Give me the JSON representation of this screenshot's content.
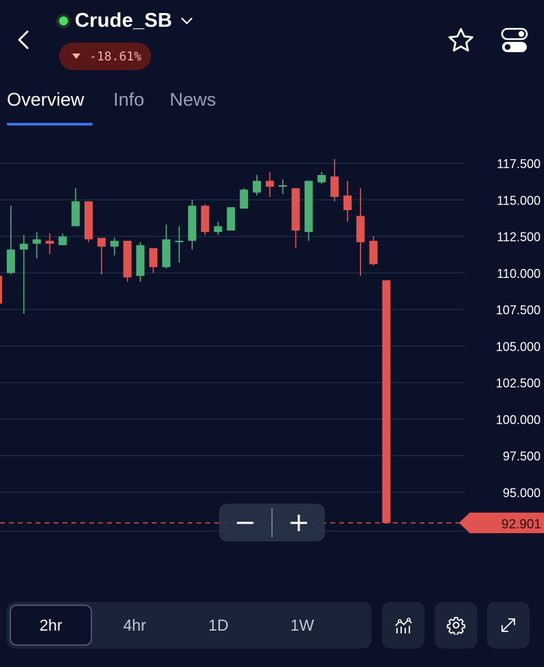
{
  "header": {
    "title": "Crude_SB",
    "change": "-18.61%",
    "icons": {
      "back": "chevron-left-icon",
      "dropdown": "chevron-down-icon",
      "favorite": "star-icon",
      "settings_toggle": "toggle-switch-icon"
    },
    "colors": {
      "live_dot": "#4cd964",
      "negative": "#e0534f",
      "accent": "#3f70e6"
    }
  },
  "tabs": [
    {
      "label": "Overview",
      "active": true
    },
    {
      "label": "Info",
      "active": false
    },
    {
      "label": "News",
      "active": false
    }
  ],
  "chart_data": {
    "type": "candlestick",
    "y_tick_labels": [
      "117.500",
      "115.000",
      "112.500",
      "110.000",
      "107.500",
      "105.000",
      "102.500",
      "100.000",
      "97.500",
      "95.000"
    ],
    "ylim": [
      91.8,
      119.5
    ],
    "grid": true,
    "current_price": 92.901,
    "current_price_label": "92.901",
    "up_color": "#4caf73",
    "down_color": "#e0534f",
    "candles": [
      {
        "o": 109.8,
        "h": 110.2,
        "l": 107.8,
        "c": 107.9
      },
      {
        "o": 110.0,
        "h": 114.6,
        "l": 109.9,
        "c": 111.6
      },
      {
        "o": 111.6,
        "h": 112.6,
        "l": 107.2,
        "c": 112.0
      },
      {
        "o": 112.0,
        "h": 112.8,
        "l": 111.0,
        "c": 112.3
      },
      {
        "o": 112.2,
        "h": 112.7,
        "l": 111.3,
        "c": 112.0
      },
      {
        "o": 111.9,
        "h": 112.7,
        "l": 111.9,
        "c": 112.5
      },
      {
        "o": 113.2,
        "h": 115.8,
        "l": 113.2,
        "c": 114.9
      },
      {
        "o": 114.9,
        "h": 114.9,
        "l": 112.1,
        "c": 112.3
      },
      {
        "o": 112.4,
        "h": 112.4,
        "l": 109.9,
        "c": 111.8
      },
      {
        "o": 111.8,
        "h": 112.4,
        "l": 111.2,
        "c": 112.2
      },
      {
        "o": 112.2,
        "h": 112.2,
        "l": 109.4,
        "c": 109.7
      },
      {
        "o": 109.8,
        "h": 112.1,
        "l": 109.4,
        "c": 111.9
      },
      {
        "o": 111.7,
        "h": 111.7,
        "l": 110.0,
        "c": 110.4
      },
      {
        "o": 110.4,
        "h": 113.3,
        "l": 110.3,
        "c": 112.3
      },
      {
        "o": 112.2,
        "h": 113.2,
        "l": 110.7,
        "c": 112.2
      },
      {
        "o": 112.2,
        "h": 115.0,
        "l": 111.6,
        "c": 114.6
      },
      {
        "o": 114.6,
        "h": 114.7,
        "l": 112.6,
        "c": 112.8
      },
      {
        "o": 112.8,
        "h": 113.5,
        "l": 112.6,
        "c": 113.2
      },
      {
        "o": 112.9,
        "h": 114.5,
        "l": 112.9,
        "c": 114.5
      },
      {
        "o": 114.4,
        "h": 115.8,
        "l": 114.4,
        "c": 115.7
      },
      {
        "o": 115.5,
        "h": 116.7,
        "l": 115.3,
        "c": 116.3
      },
      {
        "o": 116.3,
        "h": 116.9,
        "l": 115.2,
        "c": 115.9
      },
      {
        "o": 115.9,
        "h": 116.4,
        "l": 115.4,
        "c": 116.0
      },
      {
        "o": 115.8,
        "h": 115.8,
        "l": 111.7,
        "c": 112.9
      },
      {
        "o": 112.8,
        "h": 116.3,
        "l": 112.2,
        "c": 116.3
      },
      {
        "o": 116.2,
        "h": 116.9,
        "l": 116.1,
        "c": 116.7
      },
      {
        "o": 116.6,
        "h": 117.8,
        "l": 114.9,
        "c": 115.2
      },
      {
        "o": 115.3,
        "h": 116.3,
        "l": 113.5,
        "c": 114.3
      },
      {
        "o": 113.9,
        "h": 115.8,
        "l": 109.8,
        "c": 112.1
      },
      {
        "o": 112.2,
        "h": 112.5,
        "l": 110.5,
        "c": 110.6
      },
      {
        "o": 109.5,
        "h": 109.5,
        "l": 92.9,
        "c": 92.9
      }
    ]
  },
  "zoom": {
    "minus": "−",
    "plus": "+"
  },
  "bottom_bar": {
    "ranges": [
      {
        "label": "2hr",
        "active": true
      },
      {
        "label": "4hr",
        "active": false
      },
      {
        "label": "1D",
        "active": false
      },
      {
        "label": "1W",
        "active": false
      }
    ],
    "tools": [
      "indicators-icon",
      "gear-icon",
      "expand-icon"
    ]
  }
}
